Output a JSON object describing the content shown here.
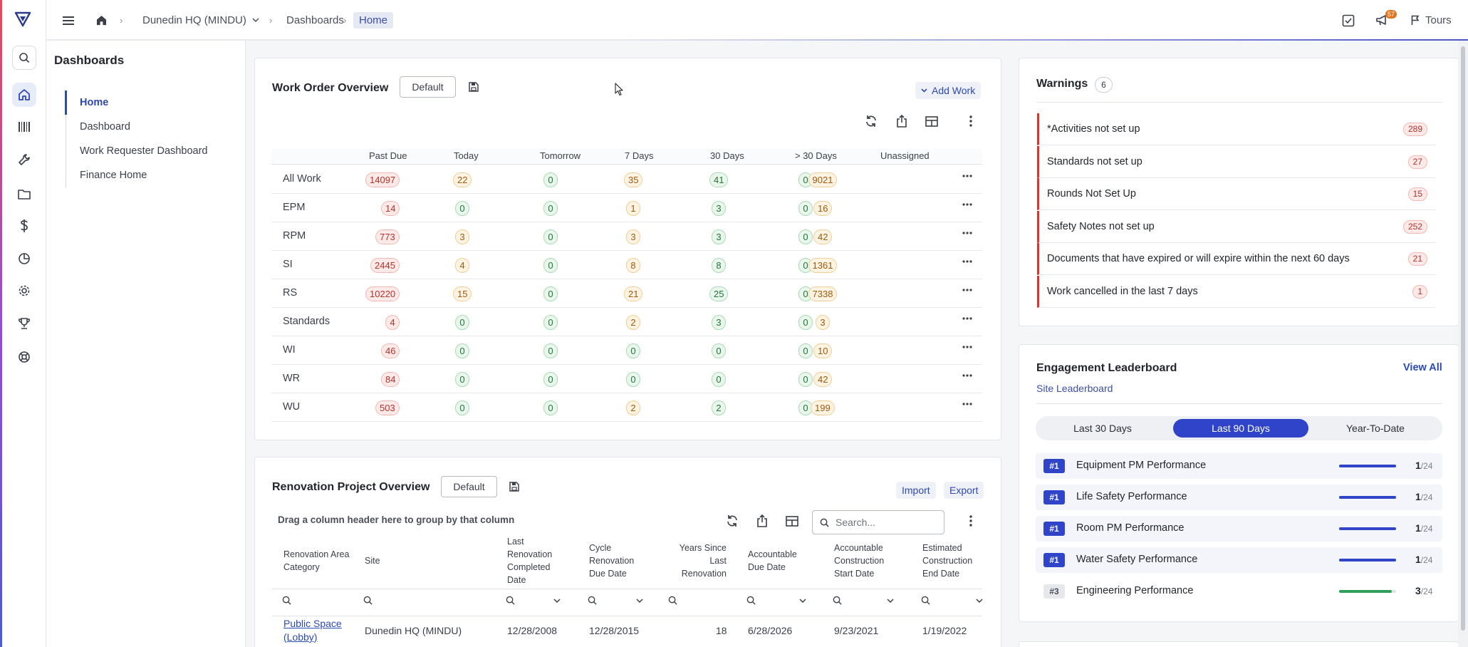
{
  "topbar": {
    "site": "Dunedin HQ (MINDU)",
    "breadcrumb_dashboards": "Dashboards",
    "breadcrumb_current": "Home",
    "notifications_count": "57",
    "tours_label": "Tours"
  },
  "dashboards": {
    "title": "Dashboards",
    "items": [
      {
        "label": "Home",
        "active": true
      },
      {
        "label": "Dashboard"
      },
      {
        "label": "Work Requester Dashboard"
      },
      {
        "label": "Finance Home"
      }
    ]
  },
  "work_order": {
    "title": "Work Order Overview",
    "default_label": "Default",
    "add_work_label": "Add Work",
    "columns": [
      "Past Due",
      "Today",
      "Tomorrow",
      "7 Days",
      "30 Days",
      "> 30 Days",
      "Unassigned"
    ],
    "rows": [
      {
        "label": "All Work",
        "values": [
          "14097",
          "22",
          "0",
          "35",
          "41",
          "0",
          "9021"
        ]
      },
      {
        "label": "EPM",
        "values": [
          "14",
          "0",
          "0",
          "1",
          "3",
          "0",
          "16"
        ]
      },
      {
        "label": "RPM",
        "values": [
          "773",
          "3",
          "0",
          "3",
          "3",
          "0",
          "42"
        ]
      },
      {
        "label": "SI",
        "values": [
          "2445",
          "4",
          "0",
          "8",
          "8",
          "0",
          "1361"
        ]
      },
      {
        "label": "RS",
        "values": [
          "10220",
          "15",
          "0",
          "21",
          "25",
          "0",
          "7338"
        ]
      },
      {
        "label": "Standards",
        "values": [
          "4",
          "0",
          "0",
          "2",
          "3",
          "0",
          "3"
        ]
      },
      {
        "label": "WI",
        "values": [
          "46",
          "0",
          "0",
          "0",
          "0",
          "0",
          "10"
        ]
      },
      {
        "label": "WR",
        "values": [
          "84",
          "0",
          "0",
          "0",
          "0",
          "0",
          "42"
        ]
      },
      {
        "label": "WU",
        "values": [
          "503",
          "0",
          "0",
          "2",
          "2",
          "0",
          "199"
        ]
      }
    ]
  },
  "renovation": {
    "title": "Renovation Project Overview",
    "default_label": "Default",
    "import_label": "Import",
    "export_label": "Export",
    "group_hint": "Drag a column header here to group by that column",
    "search_placeholder": "Search...",
    "headers": [
      "Renovation Area Category",
      "Site",
      "Last Renovation Completed Date",
      "Cycle Renovation Due Date",
      "Years Since Last Renovation",
      "Accountable Due Date",
      "Accountable Construction Start Date",
      "Estimated Construction End Date"
    ],
    "row": {
      "category": "Public Space (Lobby)",
      "site": "Dunedin HQ (MINDU)",
      "last_completed": "12/28/2008",
      "cycle_due": "12/28/2015",
      "years_since": "18",
      "accountable_due": "6/28/2026",
      "construction_start": "9/23/2021",
      "construction_end": "1/19/2022"
    }
  },
  "warnings": {
    "title": "Warnings",
    "count": "6",
    "items": [
      {
        "label": "*Activities not set up",
        "count": "289"
      },
      {
        "label": "Standards not set up",
        "count": "27"
      },
      {
        "label": "Rounds Not Set Up",
        "count": "15"
      },
      {
        "label": "Safety Notes not set up",
        "count": "252"
      },
      {
        "label": "Documents that have expired or will expire within the next 60 days",
        "count": "21"
      },
      {
        "label": "Work cancelled in the last 7 days",
        "count": "1"
      }
    ]
  },
  "leaderboard": {
    "title": "Engagement Leaderboard",
    "view_all": "View All",
    "subtitle": "Site Leaderboard",
    "tabs": [
      "Last 30 Days",
      "Last 90 Days",
      "Year-To-Date"
    ],
    "active_tab": "Last 90 Days",
    "total_label": "/24",
    "entries": [
      {
        "rank": "#1",
        "name": "Equipment PM Performance",
        "score": "1",
        "progress": 1.0
      },
      {
        "rank": "#1",
        "name": "Life Safety Performance",
        "score": "1",
        "progress": 1.0
      },
      {
        "rank": "#1",
        "name": "Room PM Performance",
        "score": "1",
        "progress": 1.0
      },
      {
        "rank": "#1",
        "name": "Water Safety Performance",
        "score": "1",
        "progress": 1.0
      },
      {
        "rank": "#3",
        "name": "Engineering Performance",
        "score": "3",
        "progress": 0.92
      }
    ]
  },
  "colors": {
    "accent": "#2f44c8",
    "danger": "#d9362b",
    "success": "#2ea05a"
  }
}
